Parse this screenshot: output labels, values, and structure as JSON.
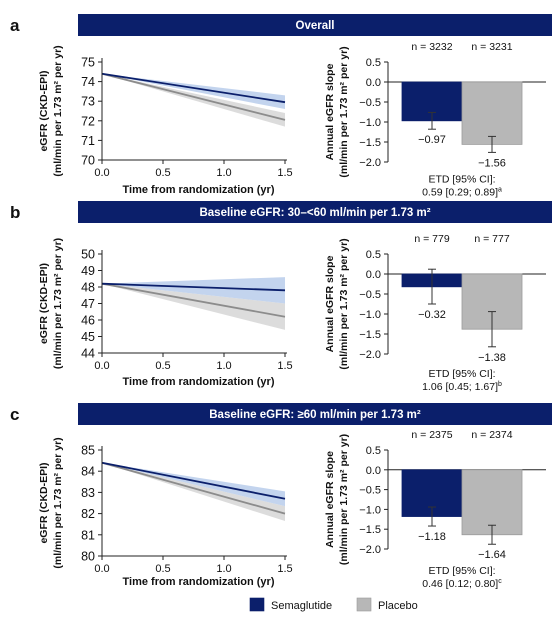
{
  "legend": [
    {
      "name": "Semaglutide",
      "color": "#0b1f6b"
    },
    {
      "name": "Placebo",
      "color": "#b7b7b7"
    }
  ],
  "colors": {
    "header_bg": "#0b1f6b",
    "header_text": "#ffffff",
    "semaglutide": "#0b1f6b",
    "placebo": "#b7b7b7",
    "semaglutide_band": "#b9cdeb",
    "placebo_band": "#d6d6d6"
  },
  "chart_data": [
    {
      "panel_letter": "a",
      "title": "Overall",
      "line_chart": {
        "type": "line",
        "ylabel_line1": "eGFR (CKD-EPI)",
        "ylabel_line2": "(ml/min per 1.73 m² per yr)",
        "xlabel": "Time from randomization (yr)",
        "xlim": [
          0,
          1.5
        ],
        "ylim": [
          70,
          75
        ],
        "xticks": [
          "0.0",
          "0.5",
          "1.0",
          "1.5"
        ],
        "yticks": [
          "70",
          "71",
          "72",
          "73",
          "74",
          "75"
        ],
        "series": [
          {
            "name": "Semaglutide",
            "x": [
              0,
              1.5
            ],
            "y": [
              74.4,
              72.95
            ],
            "band_lower": [
              74.4,
              72.6
            ],
            "band_upper": [
              74.4,
              73.3
            ]
          },
          {
            "name": "Placebo",
            "x": [
              0,
              1.5
            ],
            "y": [
              74.4,
              72.05
            ],
            "band_lower": [
              74.4,
              71.7
            ],
            "band_upper": [
              74.4,
              72.4
            ]
          }
        ]
      },
      "bar_chart": {
        "type": "bar",
        "ylabel_line1": "Annual eGFR slope",
        "ylabel_line2": "(ml/min per 1.73 m² per yr)",
        "ylim": [
          -2.0,
          0.5
        ],
        "yticks": [
          "0.5",
          "0.0",
          "−0.5",
          "−1.0",
          "−1.5",
          "−2.0"
        ],
        "n_labels": [
          "n = 3232",
          "n = 3231"
        ],
        "values": [
          -0.97,
          -1.56
        ],
        "value_labels": [
          "−0.97",
          "−1.56"
        ],
        "ci_lower": [
          -1.18,
          -1.76
        ],
        "ci_upper": [
          -0.76,
          -1.36
        ],
        "etd_line1": "ETD [95% CI]:",
        "etd_line2": "0.59 [0.29; 0.89]",
        "etd_sup": "a"
      }
    },
    {
      "panel_letter": "b",
      "title": "Baseline eGFR: 30–<60 ml/min per 1.73 m²",
      "line_chart": {
        "type": "line",
        "ylabel_line1": "eGFR (CKD-EPI)",
        "ylabel_line2": "(ml/min per 1.73 m² per yr)",
        "xlabel": "Time from randomization (yr)",
        "xlim": [
          0,
          1.5
        ],
        "ylim": [
          44,
          50
        ],
        "xticks": [
          "0.0",
          "0.5",
          "1.0",
          "1.5"
        ],
        "yticks": [
          "44",
          "45",
          "46",
          "47",
          "48",
          "49",
          "50"
        ],
        "series": [
          {
            "name": "Semaglutide",
            "x": [
              0,
              1.5
            ],
            "y": [
              48.2,
              47.8
            ],
            "band_lower": [
              48.2,
              47.0
            ],
            "band_upper": [
              48.2,
              48.6
            ]
          },
          {
            "name": "Placebo",
            "x": [
              0,
              1.5
            ],
            "y": [
              48.2,
              46.2
            ],
            "band_lower": [
              48.2,
              45.4
            ],
            "band_upper": [
              48.2,
              47.0
            ]
          }
        ]
      },
      "bar_chart": {
        "type": "bar",
        "ylabel_line1": "Annual eGFR slope",
        "ylabel_line2": "(ml/min per 1.73 m² per yr)",
        "ylim": [
          -2.0,
          0.5
        ],
        "yticks": [
          "0.5",
          "0.0",
          "−0.5",
          "−1.0",
          "−1.5",
          "−2.0"
        ],
        "n_labels": [
          "n = 779",
          "n = 777"
        ],
        "values": [
          -0.32,
          -1.38
        ],
        "value_labels": [
          "−0.32",
          "−1.38"
        ],
        "ci_lower": [
          -0.75,
          -1.82
        ],
        "ci_upper": [
          0.12,
          -0.94
        ],
        "etd_line1": "ETD [95% CI]:",
        "etd_line2": "1.06 [0.45; 1.67]",
        "etd_sup": "b"
      }
    },
    {
      "panel_letter": "c",
      "title": "Baseline eGFR: ≥60 ml/min per 1.73 m²",
      "line_chart": {
        "type": "line",
        "ylabel_line1": "eGFR (CKD-EPI)",
        "ylabel_line2": "(ml/min per 1.73 m² per yr)",
        "xlabel": "Time from randomization (yr)",
        "xlim": [
          0,
          1.5
        ],
        "ylim": [
          80,
          85
        ],
        "xticks": [
          "0.0",
          "0.5",
          "1.0",
          "1.5"
        ],
        "yticks": [
          "80",
          "81",
          "82",
          "83",
          "84",
          "85"
        ],
        "series": [
          {
            "name": "Semaglutide",
            "x": [
              0,
              1.5
            ],
            "y": [
              84.4,
              82.7
            ],
            "band_lower": [
              84.4,
              82.35
            ],
            "band_upper": [
              84.4,
              83.05
            ]
          },
          {
            "name": "Placebo",
            "x": [
              0,
              1.5
            ],
            "y": [
              84.4,
              82.0
            ],
            "band_lower": [
              84.4,
              81.65
            ],
            "band_upper": [
              84.4,
              82.35
            ]
          }
        ]
      },
      "bar_chart": {
        "type": "bar",
        "ylabel_line1": "Annual eGFR slope",
        "ylabel_line2": "(ml/min per 1.73 m² per yr)",
        "ylim": [
          -2.0,
          0.5
        ],
        "yticks": [
          "0.5",
          "0.0",
          "−0.5",
          "−1.0",
          "−1.5",
          "−2.0"
        ],
        "n_labels": [
          "n = 2375",
          "n = 2374"
        ],
        "values": [
          -1.18,
          -1.64
        ],
        "value_labels": [
          "−1.18",
          "−1.64"
        ],
        "ci_lower": [
          -1.42,
          -1.88
        ],
        "ci_upper": [
          -0.94,
          -1.4
        ],
        "etd_line1": "ETD [95% CI]:",
        "etd_line2": "0.46 [0.12; 0.80]",
        "etd_sup": "c"
      }
    }
  ]
}
